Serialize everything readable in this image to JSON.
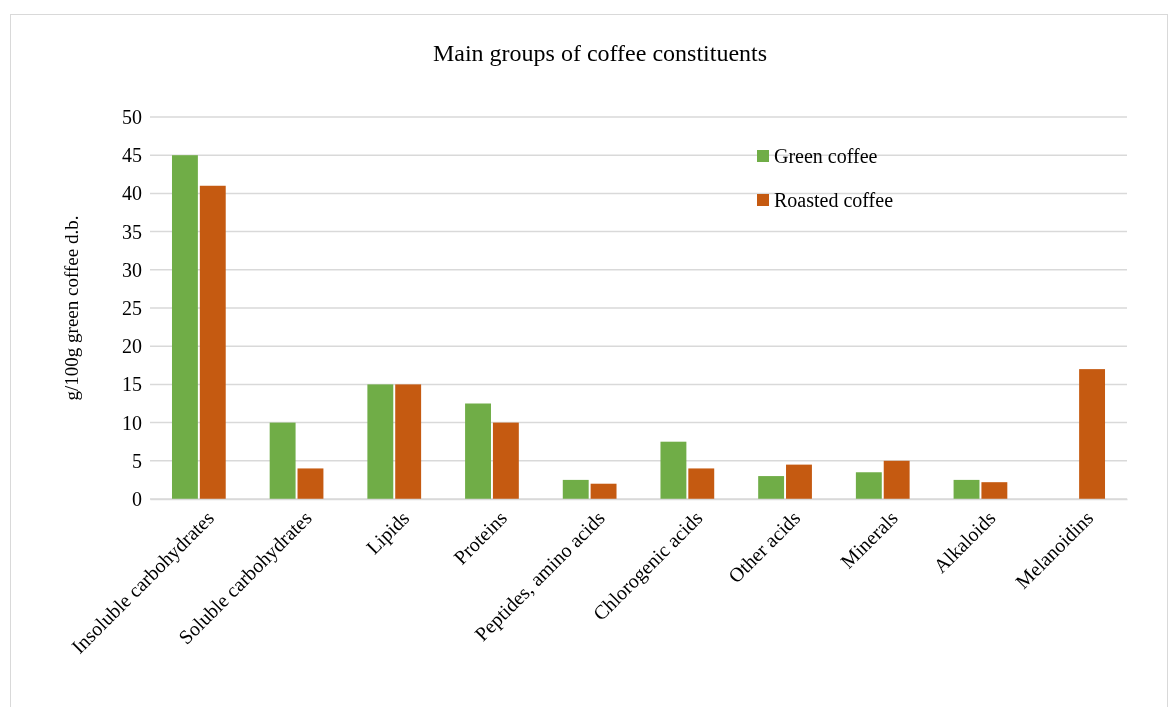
{
  "chart_data": {
    "type": "bar",
    "title": "Main groups of coffee constituents",
    "ylabel": "g/100g green coffee d.b.",
    "categories": [
      "Insoluble carbohydrates",
      "Soluble carbohydrates",
      "Lipids",
      "Proteins",
      "Peptides, amino acids",
      "Chlorogenic acids",
      "Other acids",
      "Minerals",
      "Alkaloids",
      "Melanoidins"
    ],
    "series": [
      {
        "name": "Green coffee",
        "color": "#70ad47",
        "values": [
          45,
          10,
          15,
          12.5,
          2.5,
          7.5,
          3,
          3.5,
          2.5,
          null
        ]
      },
      {
        "name": "Roasted coffee",
        "color": "#c55a11",
        "values": [
          41,
          4,
          15,
          10,
          2,
          4,
          4.5,
          5,
          2.2,
          17
        ]
      }
    ],
    "ylim": [
      0,
      50
    ],
    "yticks": [
      0,
      5,
      10,
      15,
      20,
      25,
      30,
      35,
      40,
      45,
      50
    ],
    "grid": "y",
    "legend": "top right"
  }
}
